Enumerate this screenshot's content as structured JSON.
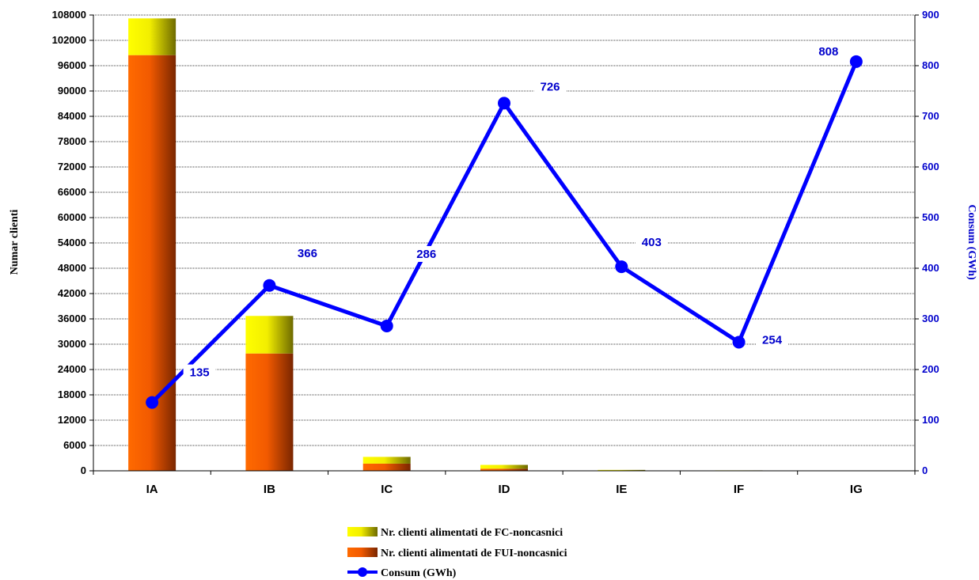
{
  "chart_data": {
    "type": "bar",
    "stacked": true,
    "categories": [
      "IA",
      "IB",
      "IC",
      "ID",
      "IE",
      "IF",
      "IG"
    ],
    "series": [
      {
        "name": "Nr. clienti alimentati de FUI-noncasnici",
        "kind": "bar",
        "axis": "left",
        "values": [
          98500,
          27800,
          1700,
          500,
          60,
          30,
          10
        ]
      },
      {
        "name": "Nr. clienti alimentati de FC-noncasnici",
        "kind": "bar",
        "axis": "left",
        "values": [
          8700,
          8900,
          1600,
          900,
          150,
          80,
          30
        ]
      },
      {
        "name": "Consum (GWh)",
        "kind": "line",
        "axis": "right",
        "values": [
          135,
          366,
          286,
          726,
          403,
          254,
          808
        ],
        "labels": [
          "135",
          "366",
          "286",
          "726",
          "403",
          "254",
          "808"
        ]
      }
    ],
    "ylabel": "Numar clienti",
    "y2label": "Consum (GWh)",
    "ylim": [
      0,
      108000
    ],
    "y2lim": [
      0,
      900
    ],
    "yticks": [
      "0",
      "6000",
      "12000",
      "18000",
      "24000",
      "30000",
      "36000",
      "42000",
      "48000",
      "54000",
      "60000",
      "66000",
      "72000",
      "78000",
      "84000",
      "90000",
      "96000",
      "102000",
      "108000"
    ],
    "y2ticks": [
      "0",
      "100",
      "200",
      "300",
      "400",
      "500",
      "600",
      "700",
      "800",
      "900"
    ],
    "grid": true,
    "legend_position": "bottom",
    "colors": {
      "fui": "#ff6600",
      "fc": "#ffff00",
      "line": "#0000ff",
      "right_axis": "#0000cc"
    }
  }
}
